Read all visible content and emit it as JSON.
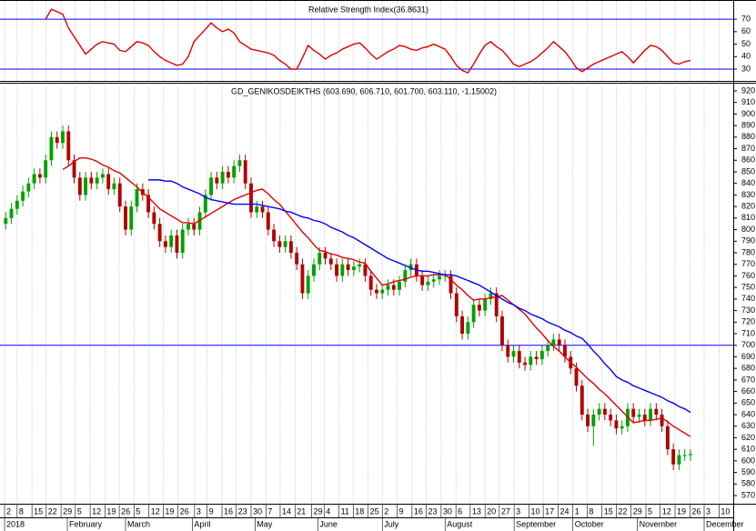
{
  "chart_data": [
    {
      "type": "line",
      "title": "Relative Strength Index(36.8631)",
      "xlim": [
        -1,
        127.5
      ],
      "ylim": [
        25,
        80
      ],
      "yticks": [
        30,
        40,
        50,
        60,
        70
      ],
      "hlines": [
        30,
        70
      ],
      "hline_color": "#0000ff",
      "grid": "x",
      "series": [
        {
          "color": "#e00000",
          "values": [
            null,
            null,
            null,
            null,
            null,
            null,
            null,
            70,
            78,
            76,
            74,
            63,
            56,
            49,
            42,
            46,
            50,
            52,
            51,
            50,
            45,
            44,
            48,
            52,
            51,
            49,
            44,
            40,
            37,
            35,
            33,
            34,
            40,
            52,
            57,
            62,
            67,
            63,
            60,
            62,
            59,
            52,
            49,
            46,
            45,
            44,
            43,
            41,
            37,
            34,
            30,
            30,
            39,
            49,
            45,
            42,
            38,
            41,
            43,
            46,
            48,
            50,
            51,
            47,
            42,
            38,
            41,
            44,
            46,
            49,
            48,
            46,
            45,
            47,
            48,
            50,
            48,
            46,
            40,
            33,
            29,
            27,
            34,
            42,
            49,
            52,
            48,
            45,
            40,
            34,
            32,
            34,
            36,
            39,
            43,
            47,
            52,
            48,
            44,
            38,
            31,
            28,
            31,
            34,
            36,
            38,
            40,
            42,
            44,
            40,
            35,
            40,
            45,
            49,
            48,
            45,
            40,
            35,
            34,
            36,
            37
          ]
        }
      ]
    },
    {
      "type": "candlestick",
      "title": "GD_GENIKOSDEIKTHS (603.690, 606.710, 601.700, 603.110, -1.15002)",
      "xlim": [
        -1,
        127.5
      ],
      "ylim": [
        565,
        925
      ],
      "yticks": [
        570,
        580,
        590,
        600,
        610,
        620,
        630,
        640,
        650,
        660,
        670,
        680,
        690,
        700,
        710,
        720,
        730,
        740,
        750,
        760,
        770,
        780,
        790,
        800,
        810,
        820,
        830,
        840,
        850,
        860,
        870,
        880,
        890,
        900,
        910,
        920
      ],
      "hlines": [
        700
      ],
      "hline_color": "#0000ff",
      "grid": "x",
      "up_color": "#00a000",
      "down_color": "#b00000",
      "open": [
        805,
        810,
        818,
        825,
        833,
        840,
        848,
        845,
        860,
        880,
        875,
        885,
        860,
        845,
        830,
        845,
        840,
        845,
        848,
        835,
        840,
        820,
        800,
        820,
        835,
        830,
        815,
        805,
        790,
        785,
        795,
        780,
        800,
        805,
        800,
        815,
        830,
        845,
        840,
        850,
        845,
        855,
        860,
        840,
        815,
        820,
        815,
        800,
        790,
        785,
        790,
        780,
        770,
        745,
        760,
        770,
        780,
        775,
        770,
        760,
        770,
        765,
        768,
        770,
        760,
        748,
        745,
        748,
        752,
        748,
        755,
        765,
        770,
        760,
        752,
        755,
        757,
        760,
        760,
        745,
        725,
        710,
        720,
        735,
        730,
        740,
        745,
        725,
        700,
        690,
        695,
        685,
        683,
        690,
        688,
        695,
        700,
        705,
        700,
        690,
        680,
        665,
        640,
        630,
        640,
        645,
        640,
        635,
        628,
        630,
        645,
        638,
        640,
        635,
        645,
        640,
        630,
        610,
        597,
        605,
        605
      ],
      "high": [
        815,
        823,
        830,
        838,
        845,
        853,
        853,
        865,
        885,
        885,
        890,
        890,
        865,
        850,
        850,
        850,
        850,
        853,
        853,
        845,
        845,
        825,
        825,
        840,
        840,
        835,
        820,
        810,
        795,
        800,
        800,
        805,
        810,
        810,
        820,
        835,
        850,
        850,
        855,
        855,
        860,
        865,
        865,
        845,
        825,
        825,
        820,
        805,
        795,
        795,
        795,
        785,
        775,
        765,
        775,
        785,
        785,
        780,
        775,
        775,
        775,
        773,
        775,
        775,
        765,
        753,
        753,
        757,
        757,
        760,
        770,
        775,
        775,
        765,
        760,
        762,
        765,
        765,
        765,
        750,
        730,
        725,
        740,
        740,
        745,
        750,
        750,
        730,
        705,
        700,
        700,
        690,
        695,
        695,
        700,
        705,
        710,
        710,
        705,
        695,
        685,
        670,
        645,
        645,
        650,
        650,
        645,
        640,
        635,
        650,
        650,
        645,
        645,
        650,
        650,
        645,
        635,
        615,
        610,
        610,
        610
      ],
      "low": [
        800,
        805,
        813,
        820,
        828,
        835,
        840,
        840,
        855,
        870,
        870,
        855,
        840,
        825,
        825,
        835,
        835,
        840,
        830,
        830,
        815,
        795,
        795,
        815,
        825,
        810,
        800,
        785,
        780,
        780,
        775,
        775,
        795,
        795,
        795,
        810,
        825,
        835,
        835,
        840,
        840,
        850,
        835,
        810,
        810,
        810,
        795,
        785,
        780,
        780,
        775,
        765,
        740,
        740,
        755,
        765,
        770,
        765,
        755,
        755,
        760,
        760,
        763,
        755,
        743,
        740,
        740,
        743,
        743,
        743,
        750,
        760,
        755,
        747,
        747,
        750,
        752,
        755,
        740,
        720,
        705,
        705,
        715,
        725,
        725,
        735,
        720,
        695,
        685,
        685,
        680,
        678,
        678,
        683,
        683,
        690,
        695,
        695,
        685,
        675,
        660,
        635,
        625,
        613,
        635,
        635,
        630,
        623,
        623,
        625,
        633,
        633,
        630,
        630,
        635,
        625,
        605,
        592,
        592,
        600,
        600
      ],
      "close": [
        810,
        818,
        825,
        833,
        840,
        848,
        845,
        860,
        880,
        875,
        885,
        860,
        845,
        830,
        845,
        840,
        845,
        848,
        835,
        840,
        820,
        800,
        820,
        835,
        830,
        815,
        805,
        790,
        785,
        795,
        780,
        800,
        805,
        800,
        815,
        830,
        845,
        840,
        850,
        845,
        855,
        860,
        840,
        815,
        820,
        815,
        800,
        790,
        785,
        790,
        780,
        770,
        745,
        760,
        770,
        780,
        775,
        770,
        760,
        770,
        765,
        768,
        770,
        760,
        748,
        745,
        748,
        752,
        748,
        755,
        765,
        770,
        760,
        752,
        755,
        757,
        760,
        760,
        745,
        725,
        710,
        720,
        735,
        730,
        740,
        745,
        725,
        700,
        690,
        695,
        685,
        683,
        690,
        688,
        695,
        700,
        705,
        700,
        690,
        680,
        665,
        640,
        630,
        640,
        645,
        640,
        635,
        628,
        630,
        645,
        638,
        640,
        635,
        645,
        640,
        630,
        610,
        597,
        605,
        605,
        606
      ],
      "series": [
        {
          "color": "#e00000",
          "values": [
            null,
            null,
            null,
            null,
            null,
            null,
            null,
            null,
            null,
            null,
            852,
            855,
            859,
            862,
            862,
            861,
            859,
            856,
            854,
            851,
            849,
            845,
            841,
            837,
            832,
            828,
            823,
            818,
            815,
            812,
            809,
            806,
            806,
            805,
            808,
            811,
            814,
            817,
            820,
            823,
            826,
            828,
            830,
            832,
            834,
            835,
            831,
            826,
            822,
            816,
            810,
            804,
            798,
            793,
            787,
            782,
            781,
            779,
            778,
            776,
            775,
            774,
            772,
            771,
            764,
            758,
            752,
            753,
            755,
            756,
            757,
            759,
            760,
            760,
            760,
            761,
            761,
            761,
            757,
            752,
            748,
            743,
            739,
            740,
            740,
            741,
            742,
            743,
            739,
            735,
            731,
            727,
            721,
            715,
            710,
            704,
            699,
            695,
            690,
            685,
            681,
            676,
            671,
            667,
            662,
            658,
            653,
            648,
            643,
            638,
            633,
            634,
            635,
            635,
            636,
            637,
            634,
            630,
            627,
            624,
            621
          ]
        },
        {
          "color": "#0000ff",
          "values": [
            null,
            null,
            null,
            null,
            null,
            null,
            null,
            null,
            null,
            null,
            null,
            null,
            null,
            null,
            null,
            null,
            null,
            null,
            null,
            null,
            null,
            null,
            null,
            null,
            null,
            843,
            843,
            843,
            842,
            842,
            840,
            837,
            835,
            833,
            831,
            828,
            826,
            825,
            824,
            823,
            822,
            822,
            822,
            822,
            822,
            821,
            820,
            819,
            818,
            816,
            815,
            813,
            811,
            810,
            808,
            807,
            805,
            802,
            800,
            798,
            795,
            793,
            790,
            787,
            784,
            781,
            778,
            775,
            773,
            771,
            769,
            767,
            765,
            764,
            764,
            763,
            762,
            761,
            761,
            760,
            758,
            756,
            754,
            752,
            749,
            746,
            743,
            740,
            737,
            735,
            732,
            730,
            727,
            725,
            723,
            720,
            718,
            716,
            713,
            711,
            708,
            706,
            701,
            695,
            690,
            684,
            679,
            673,
            670,
            668,
            665,
            663,
            661,
            659,
            657,
            655,
            652,
            650,
            647,
            645,
            642
          ]
        }
      ],
      "xticks": [
        {
          "value": -0.2,
          "label": "2"
        },
        {
          "value": 2.0,
          "label": "8"
        },
        {
          "value": 4.6,
          "label": "15"
        },
        {
          "value": 7.1,
          "label": "22"
        },
        {
          "value": 9.7,
          "label": "29"
        },
        {
          "value": 12.2,
          "label": "5"
        },
        {
          "value": 14.8,
          "label": "12"
        },
        {
          "value": 17.4,
          "label": "19"
        },
        {
          "value": 19.9,
          "label": "26"
        },
        {
          "value": 22.5,
          "label": "5"
        },
        {
          "value": 25.1,
          "label": "12"
        },
        {
          "value": 27.6,
          "label": "19"
        },
        {
          "value": 30.2,
          "label": "26"
        },
        {
          "value": 33.1,
          "label": "3"
        },
        {
          "value": 35.3,
          "label": "9"
        },
        {
          "value": 37.9,
          "label": "16"
        },
        {
          "value": 40.4,
          "label": "23"
        },
        {
          "value": 43.0,
          "label": "30"
        },
        {
          "value": 45.6,
          "label": "7"
        },
        {
          "value": 48.1,
          "label": "14"
        },
        {
          "value": 50.7,
          "label": "21"
        },
        {
          "value": 53.6,
          "label": "29"
        },
        {
          "value": 55.8,
          "label": "4"
        },
        {
          "value": 58.4,
          "label": "11"
        },
        {
          "value": 60.9,
          "label": "18"
        },
        {
          "value": 63.5,
          "label": "25"
        },
        {
          "value": 66.0,
          "label": "2"
        },
        {
          "value": 68.6,
          "label": "9"
        },
        {
          "value": 71.2,
          "label": "16"
        },
        {
          "value": 73.7,
          "label": "23"
        },
        {
          "value": 76.3,
          "label": "30"
        },
        {
          "value": 78.9,
          "label": "6"
        },
        {
          "value": 81.4,
          "label": "13"
        },
        {
          "value": 84.0,
          "label": "20"
        },
        {
          "value": 86.5,
          "label": "27"
        },
        {
          "value": 89.1,
          "label": "3"
        },
        {
          "value": 91.7,
          "label": "10"
        },
        {
          "value": 94.2,
          "label": "17"
        },
        {
          "value": 96.8,
          "label": "24"
        },
        {
          "value": 99.4,
          "label": "1"
        },
        {
          "value": 101.9,
          "label": "8"
        },
        {
          "value": 104.5,
          "label": "15"
        },
        {
          "value": 107.0,
          "label": "22"
        },
        {
          "value": 109.6,
          "label": "29"
        },
        {
          "value": 112.2,
          "label": "5"
        },
        {
          "value": 114.7,
          "label": "12"
        },
        {
          "value": 117.3,
          "label": "19"
        },
        {
          "value": 119.9,
          "label": "26"
        },
        {
          "value": 122.4,
          "label": "3"
        },
        {
          "value": 125.0,
          "label": "10"
        }
      ],
      "months": [
        {
          "value": -0.2,
          "label": "2018"
        },
        {
          "value": 10.8,
          "label": "February"
        },
        {
          "value": 21.0,
          "label": "March"
        },
        {
          "value": 32.7,
          "label": "April"
        },
        {
          "value": 43.7,
          "label": "May"
        },
        {
          "value": 54.7,
          "label": "June"
        },
        {
          "value": 66.0,
          "label": "July"
        },
        {
          "value": 77.0,
          "label": "August"
        },
        {
          "value": 89.1,
          "label": "September"
        },
        {
          "value": 99.4,
          "label": "October"
        },
        {
          "value": 110.7,
          "label": "November"
        },
        {
          "value": 122.4,
          "label": "December"
        }
      ]
    }
  ]
}
